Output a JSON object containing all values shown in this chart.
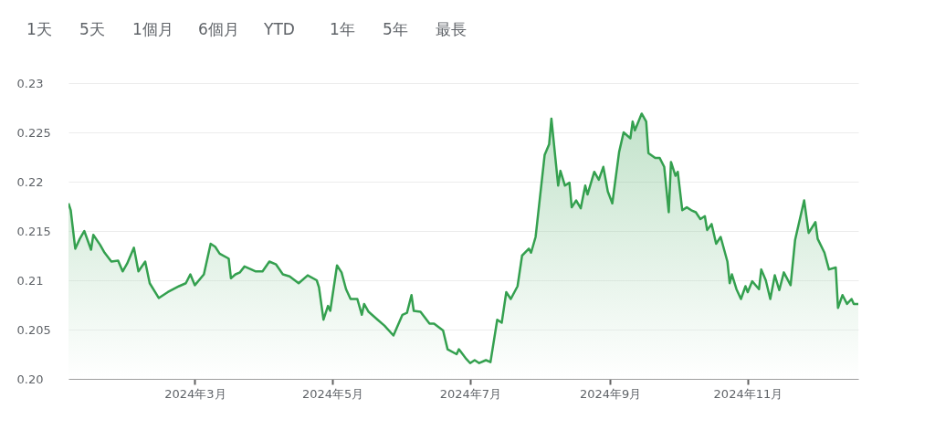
{
  "chart_data": {
    "type": "area",
    "annotations": [
      "1天",
      "5天",
      "1個月",
      "6個月",
      "YTD",
      "1年",
      "5年",
      "最長"
    ],
    "x": [
      "2024-01-05",
      "2024-01-06",
      "2024-01-08",
      "2024-01-10",
      "2024-01-12",
      "2024-01-15",
      "2024-01-16",
      "2024-01-19",
      "2024-01-21",
      "2024-01-24",
      "2024-01-27",
      "2024-01-29",
      "2024-01-31",
      "2024-02-03",
      "2024-02-05",
      "2024-02-08",
      "2024-02-10",
      "2024-02-14",
      "2024-02-18",
      "2024-02-23",
      "2024-02-26",
      "2024-02-28",
      "2024-03-01",
      "2024-03-05",
      "2024-03-08",
      "2024-03-10",
      "2024-03-12",
      "2024-03-16",
      "2024-03-17",
      "2024-03-19",
      "2024-03-21",
      "2024-03-23",
      "2024-03-26",
      "2024-03-28",
      "2024-03-31",
      "2024-04-03",
      "2024-04-06",
      "2024-04-09",
      "2024-04-12",
      "2024-04-16",
      "2024-04-20",
      "2024-04-24",
      "2024-04-25",
      "2024-04-27",
      "2024-04-29",
      "2024-04-30",
      "2024-05-03",
      "2024-05-05",
      "2024-05-07",
      "2024-05-09",
      "2024-05-12",
      "2024-05-14",
      "2024-05-15",
      "2024-05-17",
      "2024-05-21",
      "2024-05-24",
      "2024-05-28",
      "2024-06-01",
      "2024-06-03",
      "2024-06-05",
      "2024-06-06",
      "2024-06-09",
      "2024-06-13",
      "2024-06-15",
      "2024-06-19",
      "2024-06-21",
      "2024-06-25",
      "2024-06-26",
      "2024-06-29",
      "2024-07-01",
      "2024-07-03",
      "2024-07-05",
      "2024-07-08",
      "2024-07-10",
      "2024-07-13",
      "2024-07-15",
      "2024-07-17",
      "2024-07-19",
      "2024-07-22",
      "2024-07-24",
      "2024-07-27",
      "2024-07-28",
      "2024-07-30",
      "2024-08-03",
      "2024-08-05",
      "2024-08-06",
      "2024-08-09",
      "2024-08-10",
      "2024-08-12",
      "2024-08-14",
      "2024-08-15",
      "2024-08-17",
      "2024-08-19",
      "2024-08-21",
      "2024-08-22",
      "2024-08-25",
      "2024-08-27",
      "2024-08-29",
      "2024-08-31",
      "2024-09-02",
      "2024-09-05",
      "2024-09-07",
      "2024-09-10",
      "2024-09-11",
      "2024-09-12",
      "2024-09-15",
      "2024-09-17",
      "2024-09-18",
      "2024-09-21",
      "2024-09-23",
      "2024-09-25",
      "2024-09-27",
      "2024-09-28",
      "2024-09-30",
      "2024-10-01",
      "2024-10-03",
      "2024-10-05",
      "2024-10-07",
      "2024-10-09",
      "2024-10-11",
      "2024-10-13",
      "2024-10-14",
      "2024-10-16",
      "2024-10-18",
      "2024-10-20",
      "2024-10-23",
      "2024-10-24",
      "2024-10-25",
      "2024-10-27",
      "2024-10-29",
      "2024-10-31",
      "2024-11-01",
      "2024-11-03",
      "2024-11-06",
      "2024-11-07",
      "2024-11-09",
      "2024-11-11",
      "2024-11-13",
      "2024-11-15",
      "2024-11-17",
      "2024-11-20",
      "2024-11-22",
      "2024-11-26",
      "2024-11-28",
      "2024-12-01",
      "2024-12-02",
      "2024-12-05",
      "2024-12-07",
      "2024-12-10",
      "2024-12-11",
      "2024-12-13",
      "2024-12-15",
      "2024-12-17",
      "2024-12-18",
      "2024-12-20"
    ],
    "series": [
      {
        "color": "#34a04f",
        "values": [
          0.2178,
          0.2171,
          0.2132,
          0.2142,
          0.215,
          0.2131,
          0.2146,
          0.2136,
          0.2128,
          0.2119,
          0.212,
          0.2109,
          0.2117,
          0.2133,
          0.2109,
          0.2119,
          0.2097,
          0.2082,
          0.2088,
          0.2094,
          0.2097,
          0.2106,
          0.2095,
          0.2106,
          0.2137,
          0.2134,
          0.2127,
          0.2122,
          0.2102,
          0.2106,
          0.2108,
          0.2114,
          0.2111,
          0.2109,
          0.2109,
          0.2119,
          0.2116,
          0.2106,
          0.2104,
          0.2097,
          0.2105,
          0.21,
          0.2093,
          0.206,
          0.2074,
          0.2069,
          0.2115,
          0.2108,
          0.2091,
          0.2081,
          0.2081,
          0.2065,
          0.2076,
          0.2068,
          0.206,
          0.2054,
          0.2044,
          0.2065,
          0.2067,
          0.2085,
          0.2069,
          0.2068,
          0.2056,
          0.2056,
          0.2049,
          0.203,
          0.2025,
          0.203,
          0.2021,
          0.2016,
          0.2019,
          0.2016,
          0.2019,
          0.2017,
          0.206,
          0.2057,
          0.2088,
          0.2081,
          0.2094,
          0.2125,
          0.2132,
          0.2128,
          0.2144,
          0.2227,
          0.2238,
          0.2264,
          0.2196,
          0.2211,
          0.2196,
          0.2199,
          0.2174,
          0.2181,
          0.2173,
          0.2196,
          0.2187,
          0.221,
          0.2202,
          0.2215,
          0.219,
          0.2178,
          0.223,
          0.225,
          0.2244,
          0.2261,
          0.2252,
          0.2269,
          0.2261,
          0.2229,
          0.2224,
          0.2224,
          0.2215,
          0.2169,
          0.222,
          0.2206,
          0.221,
          0.2171,
          0.2174,
          0.2171,
          0.2169,
          0.2162,
          0.2165,
          0.2151,
          0.2157,
          0.2137,
          0.2144,
          0.2119,
          0.2097,
          0.2106,
          0.2091,
          0.2081,
          0.2094,
          0.2088,
          0.2099,
          0.2091,
          0.2111,
          0.21,
          0.2081,
          0.2105,
          0.209,
          0.2108,
          0.2095,
          0.2141,
          0.2181,
          0.2148,
          0.2159,
          0.2142,
          0.2128,
          0.2111,
          0.2113,
          0.2072,
          0.2085,
          0.2076,
          0.2081,
          0.2076,
          0.2076
        ]
      }
    ],
    "xlim": [
      "2024-01-05",
      "2024-12-20"
    ],
    "xticks": [
      {
        "value": "2024-03-01",
        "label": "2024年3月"
      },
      {
        "value": "2024-05-01",
        "label": "2024年5月"
      },
      {
        "value": "2024-07-01",
        "label": "2024年7月"
      },
      {
        "value": "2024-09-01",
        "label": "2024年9月"
      },
      {
        "value": "2024-11-01",
        "label": "2024年11月"
      }
    ],
    "ylim": [
      0.2,
      0.23
    ],
    "yticks": [
      {
        "value": 0.2,
        "label": "0.20"
      },
      0.205,
      0.21,
      0.215,
      0.22,
      0.225,
      0.23
    ],
    "grid": "y"
  }
}
